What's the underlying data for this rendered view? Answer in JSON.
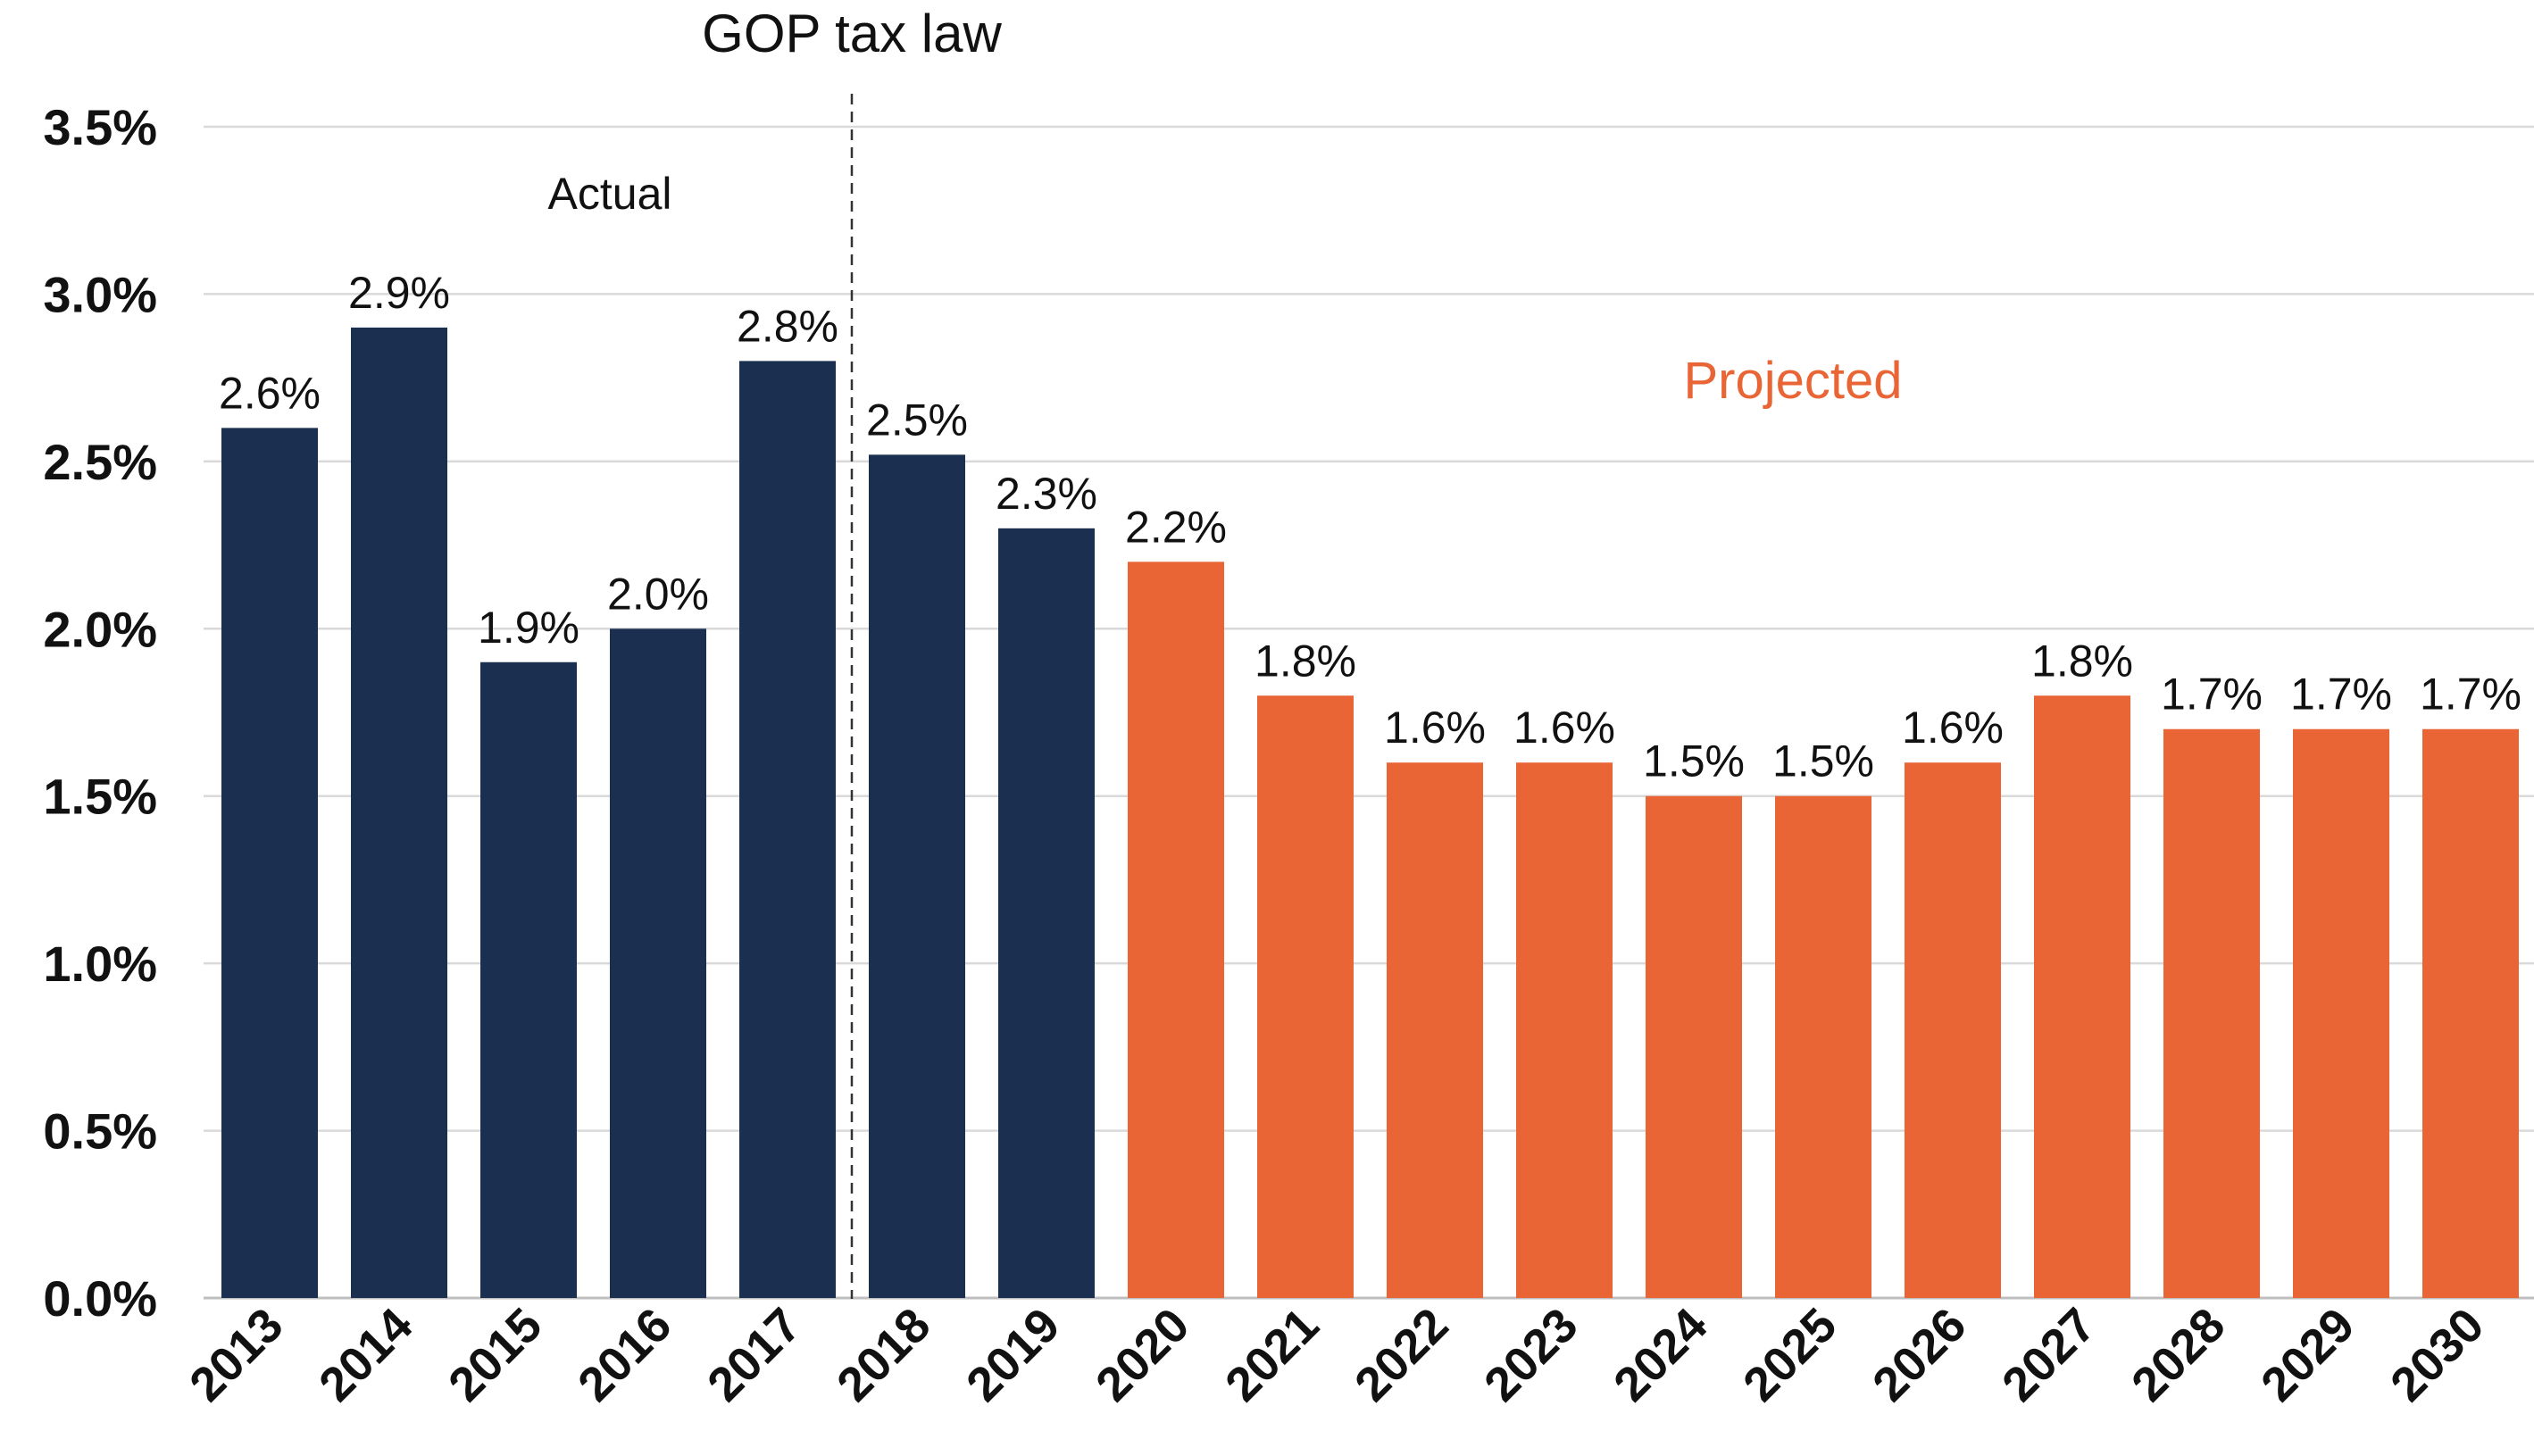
{
  "chart_data": {
    "type": "bar",
    "title": "",
    "xlabel": "",
    "ylabel": "",
    "ylim": [
      0,
      3.5
    ],
    "yticks": [
      "0.0%",
      "0.5%",
      "1.0%",
      "1.5%",
      "2.0%",
      "2.5%",
      "3.0%",
      "3.5%"
    ],
    "grid": true,
    "categories": [
      "2013",
      "2014",
      "2015",
      "2016",
      "2017",
      "2018",
      "2019",
      "2020",
      "2021",
      "2022",
      "2023",
      "2024",
      "2025",
      "2026",
      "2027",
      "2028",
      "2029",
      "2030"
    ],
    "values": [
      2.6,
      2.9,
      1.9,
      2.0,
      2.8,
      2.5,
      2.3,
      2.2,
      1.8,
      1.6,
      1.6,
      1.5,
      1.5,
      1.6,
      1.8,
      1.7,
      1.7,
      1.7
    ],
    "value_labels": [
      "2.6%",
      "2.9%",
      "1.9%",
      "2.0%",
      "2.8%",
      "2.5%",
      "2.3%",
      "2.2%",
      "1.8%",
      "1.6%",
      "1.6%",
      "1.5%",
      "1.5%",
      "1.6%",
      "1.8%",
      "1.7%",
      "1.7%",
      "1.7%"
    ],
    "bar_values": [
      2.6,
      2.9,
      1.9,
      2.0,
      2.8,
      2.52,
      2.3,
      2.2,
      1.8,
      1.6,
      1.6,
      1.5,
      1.5,
      1.6,
      1.8,
      1.7,
      1.7,
      1.7
    ],
    "segments": [
      {
        "label": "Actual",
        "color": "#1b3050",
        "count": 7
      },
      {
        "label": "Projected",
        "color": "#e96536",
        "count": 11
      }
    ],
    "annotations": {
      "divider_label": "GOP tax law",
      "actual_label": "Actual",
      "projected_label": "Projected"
    }
  }
}
